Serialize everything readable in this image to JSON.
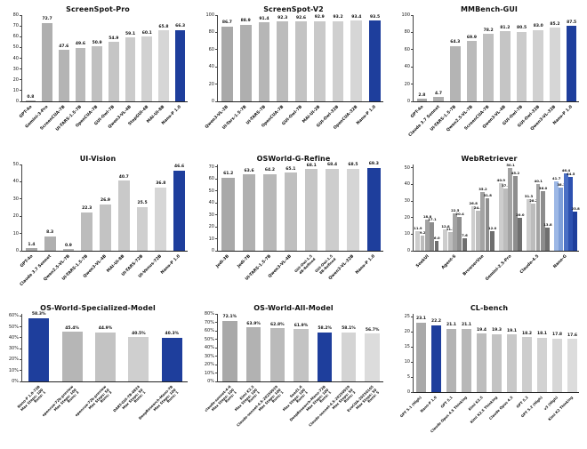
{
  "page": {
    "background": "#ffffff"
  },
  "colors": {
    "highlight_blue": "#1e3e9c",
    "bar_gray_dark": "#a9a9a9",
    "bar_gray_light": "#dcdcdc",
    "axis": "#333333",
    "text": "#111111",
    "group_gray_shades": [
      "#cdcdcd",
      "#bcbcbc",
      "#a3a3a3",
      "#8d8d8d",
      "#6f6f6f"
    ],
    "group_blue_shades": [
      "#9db8e6",
      "#7e9fd9",
      "#4a6fc4",
      "#2d51b0",
      "#1e3e9c"
    ]
  },
  "chart_data": [
    {
      "type": "bar",
      "title": "ScreenSpot-Pro",
      "categories": [
        "GPT-4o",
        "Gemini-3-Pro",
        "ScreenCUA-7B",
        "UI-TARS-1.5-7B",
        "OpenCUA-7B",
        "GUI-Owl-7B",
        "Qwen3-VL-4B",
        "StepGUI-4B",
        "MAI-UI-8B",
        "Nano-P 1.0"
      ],
      "values": [
        0.8,
        72.7,
        47.6,
        49.6,
        50.9,
        54.9,
        59.1,
        60.1,
        65.8,
        66.3
      ],
      "highlight": [
        9
      ],
      "ylim": [
        0,
        80
      ],
      "yticks": [
        0,
        10,
        20,
        30,
        40,
        50,
        60,
        70,
        80
      ],
      "percent": false,
      "grid": false,
      "legend": "none"
    },
    {
      "type": "bar",
      "title": "ScreenSpot-V2",
      "categories": [
        "Qwen3-VL-2B",
        "UI-Tars-1.5-7B",
        "UI-TARS-7B",
        "OpenCUA-7B",
        "GUI-Owl-7B",
        "MAI-UI-2B",
        "GUI-Owl-32B",
        "OpenCUA-32B",
        "Nano-P 1.0"
      ],
      "values": [
        86.7,
        88.9,
        91.4,
        92.3,
        92.6,
        92.9,
        93.2,
        93.4,
        93.5
      ],
      "highlight": [
        8
      ],
      "ylim": [
        0,
        100
      ],
      "yticks": [
        0,
        20,
        40,
        60,
        80,
        100
      ],
      "percent": false,
      "grid": false,
      "legend": "none"
    },
    {
      "type": "bar",
      "title": "MMBench-GUI",
      "categories": [
        "GPT-4o",
        "Claude 3.7 Sonnet",
        "UI-TARS-1.5-7B",
        "Qwen2.5-VL-7B",
        "ScreenCUA-7B",
        "Qwen3-VL-4B",
        "GUI-Owl-7B",
        "GUI-Owl-32B",
        "Qwen3-VL-32B",
        "Nano-P 1.0"
      ],
      "values": [
        2.8,
        4.7,
        64.3,
        69.9,
        78.2,
        81.2,
        80.5,
        83.0,
        85.2,
        87.5
      ],
      "highlight": [
        9
      ],
      "ylim": [
        0,
        100
      ],
      "yticks": [
        0,
        20,
        40,
        60,
        80,
        100
      ],
      "percent": false,
      "grid": false,
      "legend": "none"
    },
    {
      "type": "bar",
      "title": "UI-Vision",
      "categories": [
        "GPT-4o",
        "Claude 3.7 Sonnet",
        "Qwen2.5-VL-7B",
        "UI-TARS-1.5-7B",
        "Qwen3-VL-4B",
        "MAI-UI-8B",
        "UI-TARS-72B",
        "UI-Venus-72B",
        "Nano-P 1.0"
      ],
      "values": [
        1.4,
        8.3,
        0.9,
        22.3,
        26.9,
        40.7,
        25.5,
        36.8,
        46.6
      ],
      "highlight": [
        8
      ],
      "ylim": [
        0,
        50
      ],
      "yticks": [
        0,
        10,
        20,
        30,
        40,
        50
      ],
      "percent": false,
      "grid": false,
      "legend": "none"
    },
    {
      "type": "bar",
      "title": "OSWorld-G-Refine",
      "categories": [
        "Jedi-3B",
        "Jedi-7B",
        "UI-TARS-1.5-7B",
        "Qwen3-VL-4B",
        "GUI-Owl-1.5\n4B-Refined",
        "GUI-Owl-1.5\n8B-Refined",
        "Qwen3-VL-32B",
        "Nano-P 1.0"
      ],
      "values": [
        61.2,
        63.6,
        64.2,
        65.1,
        68.1,
        68.4,
        68.5,
        69.3
      ],
      "highlight": [
        7
      ],
      "ylim": [
        0,
        72
      ],
      "yticks": [
        0,
        10,
        20,
        30,
        40,
        50,
        60,
        70
      ],
      "percent": false,
      "grid": false,
      "legend": "none"
    },
    {
      "type": "grouped-bar",
      "title": "WebRetriever",
      "categories": [
        "SeekUI",
        "Agent-S",
        "BrowserUse",
        "Gemini-2.5-Pro",
        "Claude-4.5",
        "Nano-G"
      ],
      "groups": [
        {
          "label": "SeekUI",
          "values": [
            11.9,
            9.2,
            18.8,
            17.1,
            6.0
          ]
        },
        {
          "label": "Agent-S",
          "values": [
            12.8,
            11.3,
            22.5,
            20.4,
            7.6
          ]
        },
        {
          "label": "BrowserUse",
          "values": [
            26.8,
            24.4,
            35.2,
            31.8,
            12.0
          ]
        },
        {
          "label": "Gemini-2.5-Pro",
          "values": [
            40.9,
            37.5,
            50.1,
            45.2,
            20.0
          ]
        },
        {
          "label": "Claude-4.5",
          "values": [
            31.3,
            28.2,
            40.1,
            36.0,
            13.8
          ]
        },
        {
          "label": "Nano-G",
          "values": [
            41.7,
            38.3,
            46.4,
            44.5,
            23.8
          ]
        }
      ],
      "highlight_group": 5,
      "ylim": [
        0,
        52
      ],
      "yticks": [
        0,
        10,
        20,
        30,
        40,
        50
      ],
      "percent": false,
      "grid": false,
      "legend": "none"
    },
    {
      "type": "bar",
      "title": "OS-World-Specialized-Model",
      "categories": [
        "Nano-P 1.0-72B\nMax Steps: 100\nRuns: 1",
        "opencua-72b-preview\nMax Steps: 100\nRuns: 3",
        "opencua-72b-preview\nMax Steps: 50\nRuns: 3",
        "DART-GUI-7B-0824\nMax Steps: 50\nRuns: 1",
        "DeepResearch-Mano-7B\nMax Steps: 100\nRuns: 1"
      ],
      "values": [
        58.3,
        45.4,
        44.9,
        40.5,
        40.3
      ],
      "highlight": [
        0,
        4
      ],
      "ylim": [
        0,
        62
      ],
      "yticks": [
        0,
        10,
        20,
        30,
        40,
        50,
        60
      ],
      "percent": true,
      "grid": false,
      "legend": "none"
    },
    {
      "type": "bar",
      "title": "OS-World-All-Model",
      "categories": [
        "claude-sonnet-4-6\nMax Steps: 100\nRuns: 1",
        "Kimi K2.5\nMax Steps: 100\nRuns: 1",
        "Claude-sonnet-4.5-20250929\nMax Steps: 100\nRuns: 1",
        "Seed1.6\nMax Steps: 100\nRuns: 1",
        "DeepResearch-Mano-72B\nMax Steps: 100\nRuns: 1",
        "Claude-sonnet-4.5-20250929\nMax Steps: 50\nRuns: 3",
        "EvoCUA-20250105\nMax Steps: 50\nRuns: 5"
      ],
      "values": [
        72.1,
        63.9,
        62.8,
        61.9,
        58.2,
        58.1,
        56.7
      ],
      "highlight": [
        4
      ],
      "ylim": [
        0,
        80
      ],
      "yticks": [
        0,
        10,
        20,
        30,
        40,
        50,
        60,
        70,
        80
      ],
      "percent": true,
      "grid": false,
      "legend": "none"
    },
    {
      "type": "bar",
      "title": "CL-bench",
      "categories": [
        "GPT 5.1 (High)",
        "Nano-P 1.0",
        "GPT 5.1",
        "Claude Opus 4.5 Thinking",
        "Kimi K2.5",
        "Kimi K2.5 Thinking",
        "Claude Opus 4.5",
        "GPT 5.2",
        "GPT 5.2 (High)",
        "v3 (High)",
        "Kimi K2 Thinking"
      ],
      "values": [
        23.1,
        22.2,
        21.1,
        21.1,
        19.4,
        19.3,
        19.1,
        18.2,
        18.1,
        17.8,
        17.6
      ],
      "highlight": [
        1
      ],
      "ylim": [
        0,
        26
      ],
      "yticks": [
        0,
        5,
        10,
        15,
        20,
        25
      ],
      "percent": false,
      "grid": false,
      "legend": "none"
    }
  ]
}
